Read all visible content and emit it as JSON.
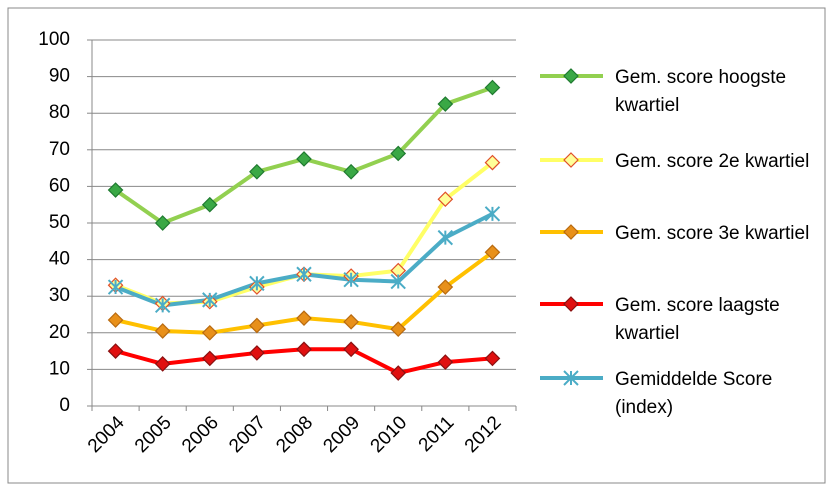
{
  "chart_data": {
    "type": "line",
    "categories": [
      "2004",
      "2005",
      "2006",
      "2007",
      "2008",
      "2009",
      "2010",
      "2011",
      "2012"
    ],
    "series": [
      {
        "name": "Gem. score hoogste kwartiel",
        "color": "#92d050",
        "marker": "diamond",
        "marker_color": "#3aa845",
        "marker_edge": "#1f7a30",
        "values": [
          59,
          50,
          55,
          64,
          67.5,
          64,
          69,
          82.5,
          87
        ]
      },
      {
        "name": "Gem. score 2e kwartiel",
        "color": "#ffff66",
        "marker": "diamond",
        "marker_color": "#ffff99",
        "marker_edge": "#e0502a",
        "values": [
          33,
          28,
          28.5,
          32.5,
          36,
          35.5,
          37,
          56.5,
          66.5
        ]
      },
      {
        "name": "Gem. score 3e kwartiel",
        "color": "#ffc000",
        "marker": "diamond",
        "marker_color": "#e8901a",
        "marker_edge": "#b86a10",
        "values": [
          23.5,
          20.5,
          20,
          22,
          24,
          23,
          21,
          32.5,
          42
        ]
      },
      {
        "name": "Gem. score laagste kwartiel",
        "color": "#ff0000",
        "marker": "diamond",
        "marker_color": "#e01010",
        "marker_edge": "#8a1010",
        "values": [
          15,
          11.5,
          13,
          14.5,
          15.5,
          15.5,
          9,
          12,
          13
        ]
      },
      {
        "name": "Gemiddelde Score (index)",
        "color": "#4bacc6",
        "marker": "star",
        "marker_color": "#4bacc6",
        "marker_edge": "#4bacc6",
        "values": [
          32.5,
          27.5,
          29,
          33.5,
          36,
          34.5,
          34,
          46,
          52.5
        ]
      }
    ],
    "ylim": [
      0,
      100
    ],
    "yticks": [
      0,
      10,
      20,
      30,
      40,
      50,
      60,
      70,
      80,
      90,
      100
    ],
    "grid": true,
    "legend": "right"
  }
}
